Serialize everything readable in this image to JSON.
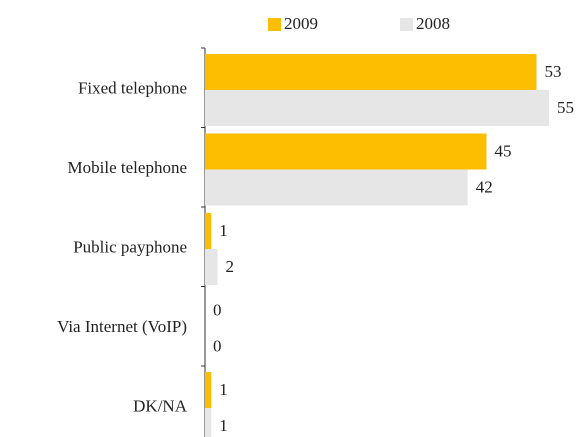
{
  "chart_data": {
    "type": "bar",
    "orientation": "horizontal",
    "categories": [
      "Fixed telephone",
      "Mobile telephone",
      "Public payphone",
      "Via Internet (VoIP)",
      "DK/NA"
    ],
    "series": [
      {
        "name": "2009",
        "color": "#fdbd00",
        "values": [
          53,
          45,
          1,
          0,
          1
        ]
      },
      {
        "name": "2008",
        "color": "#e6e6e6",
        "values": [
          55,
          42,
          2,
          0,
          1
        ]
      }
    ],
    "xlim": [
      0,
      55
    ]
  }
}
